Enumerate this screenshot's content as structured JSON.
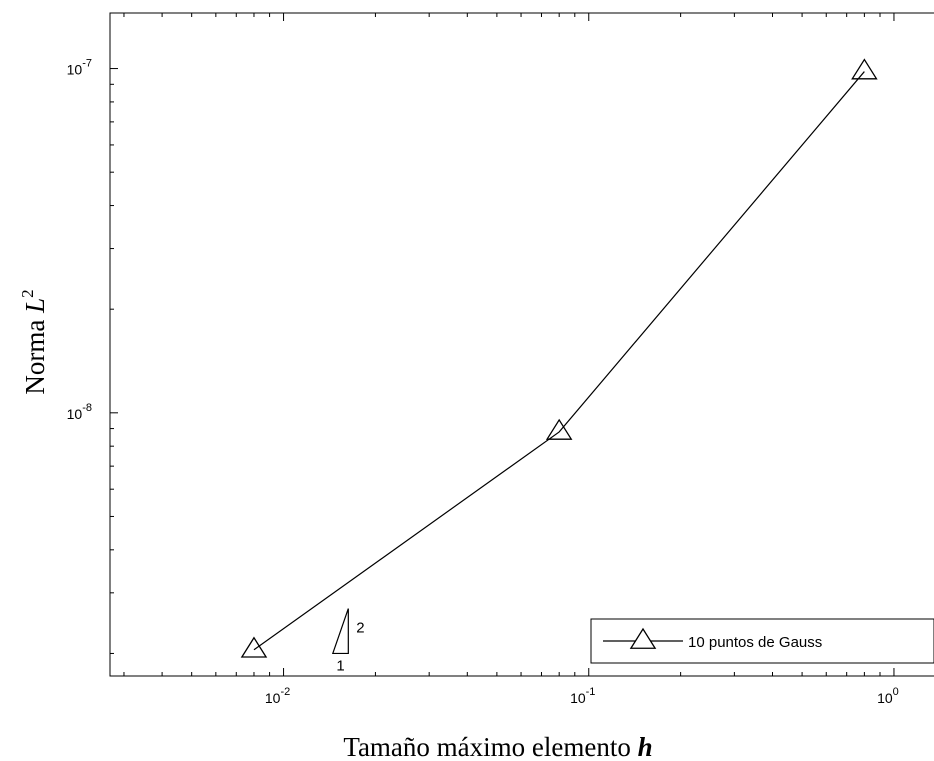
{
  "chart_data": {
    "type": "line",
    "xscale": "log",
    "yscale": "log",
    "xlim": [
      0.0027,
      2.4
    ],
    "ylim": [
      1.72e-09,
      1.45e-07
    ],
    "x_ticks": [
      {
        "value": 0.01,
        "base": "10",
        "exp": "-2"
      },
      {
        "value": 0.1,
        "base": "10",
        "exp": "-1"
      },
      {
        "value": 1,
        "base": "10",
        "exp": "0"
      }
    ],
    "y_ticks": [
      {
        "value": 1e-08,
        "base": "10",
        "exp": "-8"
      },
      {
        "value": 1e-07,
        "base": "10",
        "exp": "-7"
      }
    ],
    "xlabel": {
      "text": "Tamaño máximo elemento ",
      "var": "h"
    },
    "ylabel": {
      "text": "Norma ",
      "var": "L",
      "sup": "2"
    },
    "grid": false,
    "legend_position": "bottom-right",
    "series": [
      {
        "name": "10 puntos de Gauss",
        "marker": "triangle",
        "color": "#000000",
        "x": [
          0.008,
          0.08,
          0.8
        ],
        "y": [
          2.05e-09,
          8.8e-09,
          9.8e-08
        ]
      }
    ],
    "slope_triangle": {
      "run_label": "1",
      "rise_label": "2",
      "x0": 0.0145,
      "x1": 0.0163,
      "y_bottom": 2e-09,
      "y_top": 2.7e-09
    }
  }
}
